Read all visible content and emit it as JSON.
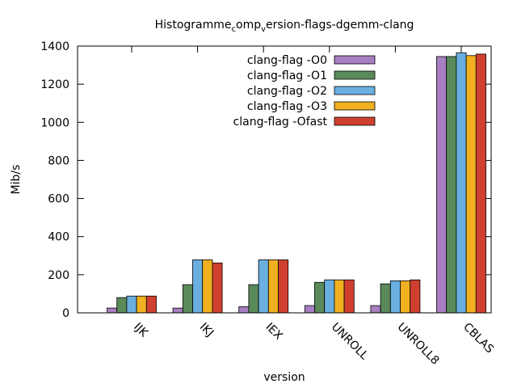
{
  "chart_data": {
    "type": "bar",
    "title_parts": {
      "main1": "Histogramme",
      "sub1": "c",
      "main2": "omp",
      "sub2": "v",
      "main3": "ersion-flags-dgemm-clang"
    },
    "xlabel": "version",
    "ylabel": "Mib/s",
    "ylim": [
      0,
      1400
    ],
    "yticks": [
      0,
      200,
      400,
      600,
      800,
      1000,
      1200,
      1400
    ],
    "categories": [
      "IJK",
      "IKJ",
      "IEX",
      "UNROLL",
      "UNROLL8",
      "CBLAS"
    ],
    "legend_position": "top-center",
    "series": [
      {
        "name": "clang-flag -O0",
        "color": "#a87fc0",
        "values": [
          25,
          25,
          32,
          38,
          38,
          1345
        ]
      },
      {
        "name": "clang-flag -O1",
        "color": "#5a8a5a",
        "values": [
          80,
          148,
          148,
          160,
          152,
          1345
        ]
      },
      {
        "name": "clang-flag -O2",
        "color": "#6aafe0",
        "values": [
          88,
          278,
          278,
          173,
          168,
          1365
        ]
      },
      {
        "name": "clang-flag -O3",
        "color": "#f0b020",
        "values": [
          88,
          278,
          278,
          173,
          168,
          1350
        ]
      },
      {
        "name": "clang-flag -Ofast",
        "color": "#d04030",
        "values": [
          88,
          262,
          278,
          173,
          173,
          1358
        ]
      }
    ]
  }
}
